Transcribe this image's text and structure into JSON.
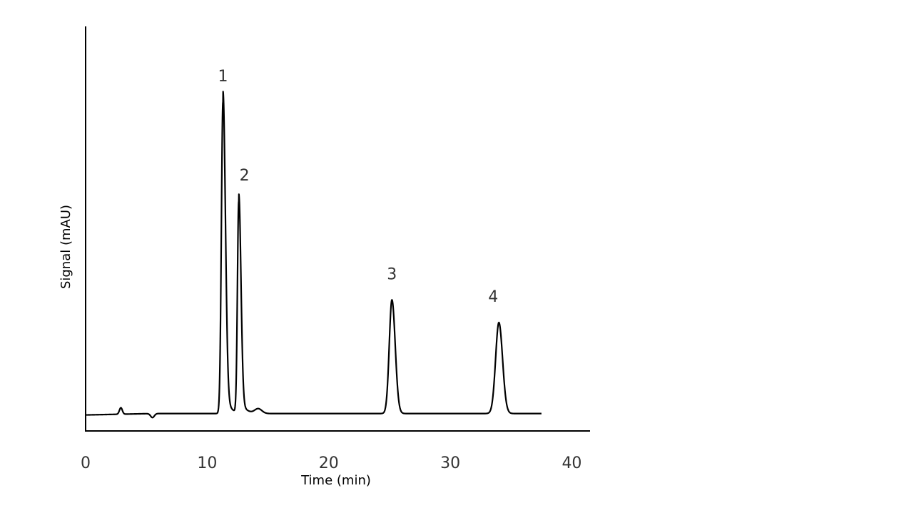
{
  "chart_data": {
    "type": "line",
    "title": "",
    "xlabel": "Time (min)",
    "ylabel": "Signal (mAU)",
    "xlim": [
      0,
      41.5
    ],
    "ylim": [
      0,
      100
    ],
    "x_ticks": [
      0,
      10,
      20,
      30,
      40
    ],
    "x_tick_labels": [
      "0",
      "10",
      "20",
      "30",
      "40"
    ],
    "y_ticks_shown": false,
    "grid": false,
    "line_color": "#000000",
    "text_color": "#333333",
    "baseline": 4.3,
    "baseline_end_x": 37.5,
    "peaks": [
      {
        "label": "1",
        "time": 11.3,
        "height": 77.0,
        "width_left": 0.13,
        "width_right": 0.2
      },
      {
        "label": "2",
        "time": 12.6,
        "height": 52.3,
        "width_left": 0.11,
        "width_right": 0.18
      },
      {
        "label": "3",
        "time": 25.2,
        "height": 28.1,
        "width_left": 0.22,
        "width_right": 0.27
      },
      {
        "label": "4",
        "time": 34.0,
        "height": 22.5,
        "width_left": 0.27,
        "width_right": 0.3
      }
    ],
    "minor_features": [
      {
        "time": 2.9,
        "height": 1.6,
        "width": 0.12
      },
      {
        "time": 5.5,
        "height": -1.0,
        "width": 0.15
      },
      {
        "time": 14.2,
        "height": 1.2,
        "width": 0.3
      }
    ]
  }
}
